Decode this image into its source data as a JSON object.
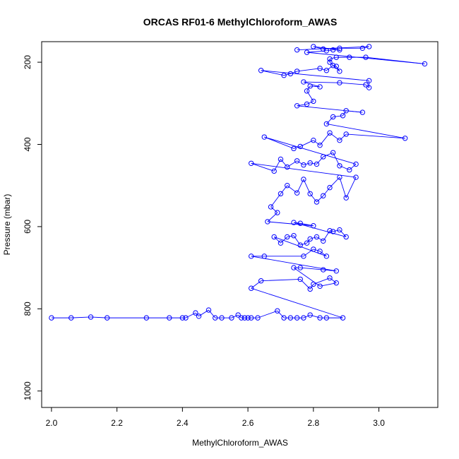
{
  "chart_data": {
    "type": "scatter",
    "title": "ORCAS RF01-6 MethylChloroform_AWAS",
    "xlabel": "MethylChloroform_AWAS",
    "ylabel": "Pressure (mbar)",
    "xlim": [
      1.97,
      3.18
    ],
    "ylim": [
      1040,
      150
    ],
    "y_reversed": true,
    "x_ticks": [
      2.0,
      2.2,
      2.4,
      2.6,
      2.8,
      3.0
    ],
    "x_tick_labels": [
      "2.0",
      "2.2",
      "2.4",
      "2.6",
      "2.8",
      "3.0"
    ],
    "y_ticks": [
      200,
      400,
      600,
      800,
      1000
    ],
    "y_tick_labels": [
      "200",
      "400",
      "600",
      "800",
      "1000"
    ],
    "grid": false,
    "legend": "none",
    "series_color": "#0000ff",
    "marker": "open-circle",
    "connected": true,
    "series": [
      {
        "values": [
          [
            2.0,
            822
          ],
          [
            2.06,
            822
          ],
          [
            2.12,
            820
          ],
          [
            2.17,
            822
          ],
          [
            2.29,
            822
          ],
          [
            2.36,
            822
          ],
          [
            2.4,
            822
          ],
          [
            2.41,
            822
          ],
          [
            2.44,
            810
          ],
          [
            2.45,
            818
          ],
          [
            2.48,
            803
          ],
          [
            2.5,
            822
          ],
          [
            2.52,
            822
          ],
          [
            2.55,
            822
          ],
          [
            2.57,
            815
          ],
          [
            2.58,
            822
          ],
          [
            2.59,
            822
          ],
          [
            2.6,
            822
          ],
          [
            2.61,
            822
          ],
          [
            2.63,
            822
          ],
          [
            2.69,
            805
          ],
          [
            2.71,
            822
          ],
          [
            2.73,
            822
          ],
          [
            2.75,
            822
          ],
          [
            2.77,
            822
          ],
          [
            2.79,
            815
          ],
          [
            2.82,
            822
          ],
          [
            2.84,
            822
          ],
          [
            2.89,
            822
          ],
          [
            2.61,
            750
          ],
          [
            2.64,
            732
          ],
          [
            2.76,
            728
          ],
          [
            2.79,
            752
          ],
          [
            2.8,
            740
          ],
          [
            2.85,
            725
          ],
          [
            2.87,
            737
          ],
          [
            2.82,
            745
          ],
          [
            2.74,
            700
          ],
          [
            2.76,
            700
          ],
          [
            2.83,
            705
          ],
          [
            2.87,
            708
          ],
          [
            2.61,
            672
          ],
          [
            2.65,
            672
          ],
          [
            2.77,
            672
          ],
          [
            2.8,
            655
          ],
          [
            2.82,
            660
          ],
          [
            2.84,
            672
          ],
          [
            2.68,
            625
          ],
          [
            2.7,
            640
          ],
          [
            2.72,
            625
          ],
          [
            2.74,
            622
          ],
          [
            2.76,
            645
          ],
          [
            2.78,
            640
          ],
          [
            2.79,
            630
          ],
          [
            2.81,
            625
          ],
          [
            2.83,
            635
          ],
          [
            2.85,
            610
          ],
          [
            2.86,
            612
          ],
          [
            2.88,
            608
          ],
          [
            2.9,
            625
          ],
          [
            2.74,
            590
          ],
          [
            2.76,
            592
          ],
          [
            2.8,
            598
          ],
          [
            2.66,
            588
          ],
          [
            2.69,
            566
          ],
          [
            2.67,
            552
          ],
          [
            2.7,
            520
          ],
          [
            2.72,
            500
          ],
          [
            2.75,
            518
          ],
          [
            2.77,
            485
          ],
          [
            2.79,
            520
          ],
          [
            2.81,
            540
          ],
          [
            2.83,
            525
          ],
          [
            2.85,
            505
          ],
          [
            2.88,
            480
          ],
          [
            2.9,
            530
          ],
          [
            2.93,
            480
          ],
          [
            2.61,
            446
          ],
          [
            2.68,
            465
          ],
          [
            2.7,
            436
          ],
          [
            2.72,
            455
          ],
          [
            2.75,
            440
          ],
          [
            2.77,
            450
          ],
          [
            2.79,
            445
          ],
          [
            2.81,
            448
          ],
          [
            2.83,
            430
          ],
          [
            2.86,
            420
          ],
          [
            2.88,
            452
          ],
          [
            2.91,
            462
          ],
          [
            2.93,
            448
          ],
          [
            2.65,
            382
          ],
          [
            2.74,
            410
          ],
          [
            2.76,
            405
          ],
          [
            2.8,
            390
          ],
          [
            2.82,
            402
          ],
          [
            2.85,
            372
          ],
          [
            2.88,
            390
          ],
          [
            2.9,
            375
          ],
          [
            3.08,
            385
          ],
          [
            2.84,
            350
          ],
          [
            2.86,
            333
          ],
          [
            2.89,
            330
          ],
          [
            2.9,
            318
          ],
          [
            2.95,
            322
          ],
          [
            2.75,
            306
          ],
          [
            2.78,
            302
          ],
          [
            2.8,
            295
          ],
          [
            2.78,
            270
          ],
          [
            2.79,
            258
          ],
          [
            2.82,
            260
          ],
          [
            2.77,
            248
          ],
          [
            2.88,
            250
          ],
          [
            2.96,
            255
          ],
          [
            2.97,
            262
          ],
          [
            2.97,
            245
          ],
          [
            2.64,
            220
          ],
          [
            2.71,
            232
          ],
          [
            2.73,
            228
          ],
          [
            2.75,
            222
          ],
          [
            2.82,
            215
          ],
          [
            2.84,
            220
          ],
          [
            2.86,
            208
          ],
          [
            2.87,
            210
          ],
          [
            2.88,
            222
          ],
          [
            2.85,
            200
          ],
          [
            2.85,
            192
          ],
          [
            2.87,
            188
          ],
          [
            2.91,
            188
          ],
          [
            2.96,
            188
          ],
          [
            3.14,
            204
          ],
          [
            2.78,
            176
          ],
          [
            2.84,
            172
          ],
          [
            2.86,
            170
          ],
          [
            2.88,
            170
          ],
          [
            2.8,
            162
          ],
          [
            2.83,
            168
          ],
          [
            2.88,
            166
          ],
          [
            2.95,
            166
          ],
          [
            2.97,
            162
          ],
          [
            2.75,
            170
          ]
        ]
      }
    ]
  }
}
